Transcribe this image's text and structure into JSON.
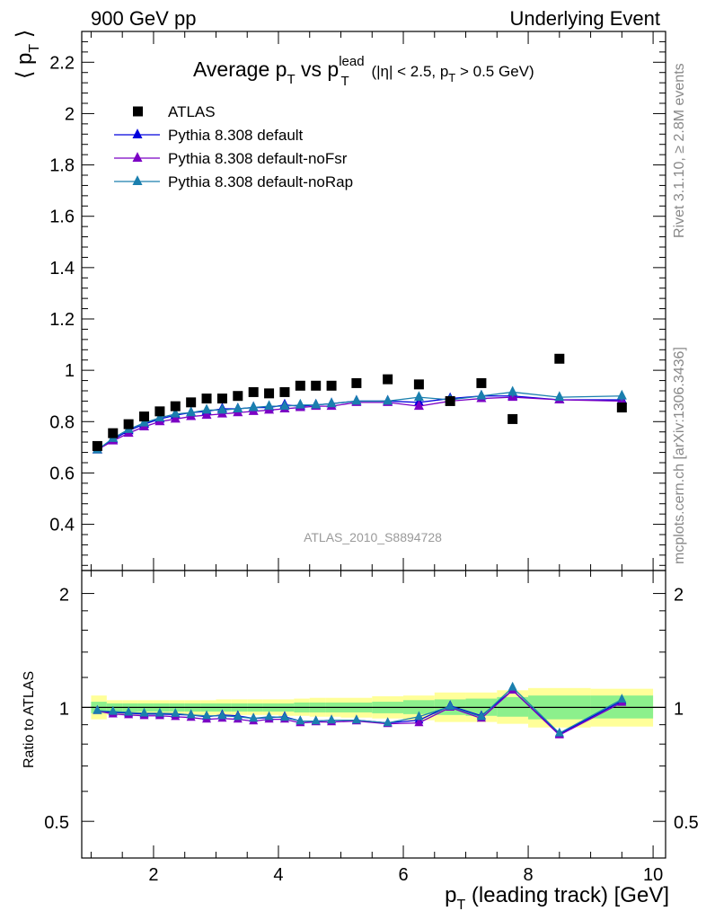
{
  "header": {
    "left": "900 GeV pp",
    "right": "Underlying Event"
  },
  "side": {
    "rivet": "Rivet 3.1.10, ≥ 2.8M events",
    "mcplots": "mcplots.cern.ch [arXiv:1306.3436]"
  },
  "watermark": "ATLAS_2010_S8894728",
  "chart_data": [
    {
      "type": "scatter",
      "panel": "main",
      "title": {
        "text": "Average p",
        "sub1": "T",
        "mid": " vs p",
        "sup2": "lead",
        "sub2": "T",
        "tail": " (|η| < 2.5, p",
        "sub3": "T",
        "end": " > 0.5 GeV)"
      },
      "ylabel": {
        "text": "⟨ p",
        "sub": "T",
        "close": " ⟩"
      },
      "xlim": [
        0.85,
        10.2
      ],
      "ylim": [
        0.22,
        2.32
      ],
      "yticks": [
        0.4,
        0.6,
        0.8,
        1,
        1.2,
        1.4,
        1.6,
        1.8,
        2,
        2.2
      ],
      "ytick_labels": [
        "0.4",
        "0.6",
        "0.8",
        "1",
        "1.2",
        "1.4",
        "1.6",
        "1.8",
        "2",
        "2.2"
      ],
      "legend": {
        "placement": "top-left",
        "entries": [
          {
            "label": "ATLAS",
            "color": "#000000",
            "marker": "square"
          },
          {
            "label": "Pythia 8.308 default",
            "color": "#0000dd",
            "marker": "triangle"
          },
          {
            "label": "Pythia 8.308 default-noFsr",
            "color": "#7b00c4",
            "marker": "triangle"
          },
          {
            "label": "Pythia 8.308 default-noRap",
            "color": "#1a7fae",
            "marker": "triangle"
          }
        ]
      },
      "x": [
        1.1,
        1.35,
        1.6,
        1.85,
        2.1,
        2.35,
        2.6,
        2.85,
        3.1,
        3.35,
        3.6,
        3.85,
        4.1,
        4.35,
        4.6,
        4.85,
        5.25,
        5.75,
        6.25,
        6.75,
        7.25,
        7.75,
        8.5,
        9.5
      ],
      "series": [
        {
          "name": "ATLAS",
          "color": "#000000",
          "marker": "square",
          "values": [
            0.705,
            0.755,
            0.79,
            0.82,
            0.84,
            0.86,
            0.875,
            0.89,
            0.89,
            0.9,
            0.915,
            0.91,
            0.915,
            0.94,
            0.94,
            0.94,
            0.95,
            0.965,
            0.945,
            0.88,
            0.95,
            0.81,
            1.045,
            0.855
          ]
        },
        {
          "name": "Pythia 8.308 default",
          "color": "#0000dd",
          "marker": "triangle",
          "values": [
            0.69,
            0.73,
            0.765,
            0.79,
            0.81,
            0.825,
            0.835,
            0.84,
            0.85,
            0.85,
            0.855,
            0.855,
            0.865,
            0.86,
            0.865,
            0.87,
            0.88,
            0.88,
            0.875,
            0.89,
            0.9,
            0.9,
            0.885,
            0.885
          ]
        },
        {
          "name": "Pythia 8.308 default-noFsr",
          "color": "#7b00c4",
          "marker": "triangle",
          "values": [
            0.69,
            0.725,
            0.755,
            0.78,
            0.8,
            0.81,
            0.82,
            0.825,
            0.83,
            0.835,
            0.84,
            0.845,
            0.85,
            0.855,
            0.86,
            0.86,
            0.875,
            0.875,
            0.86,
            0.88,
            0.89,
            0.895,
            0.885,
            0.88
          ]
        },
        {
          "name": "Pythia 8.308 default-noRap",
          "color": "#1a7fae",
          "marker": "triangle",
          "values": [
            0.69,
            0.735,
            0.77,
            0.795,
            0.815,
            0.83,
            0.835,
            0.845,
            0.845,
            0.85,
            0.855,
            0.86,
            0.86,
            0.865,
            0.865,
            0.87,
            0.88,
            0.88,
            0.895,
            0.885,
            0.9,
            0.915,
            0.895,
            0.9
          ]
        }
      ]
    },
    {
      "type": "line",
      "panel": "ratio",
      "ylabel": "Ratio to ATLAS",
      "xlabel": {
        "text": "p",
        "sub": "T",
        "tail": " (leading track) [GeV]"
      },
      "scale": "log",
      "xlim": [
        0.85,
        10.2
      ],
      "ylim": [
        0.4,
        2.3
      ],
      "yticks": [
        0.5,
        1,
        2
      ],
      "ytick_labels": [
        "0.5",
        "1",
        "2"
      ],
      "xticks": [
        2,
        4,
        6,
        8,
        10
      ],
      "xtick_labels": [
        "2",
        "4",
        "6",
        "8",
        "10"
      ],
      "bin_edges": [
        1.0,
        1.25,
        1.5,
        1.75,
        2.0,
        2.25,
        2.5,
        2.75,
        3.0,
        3.25,
        3.5,
        3.75,
        4.0,
        4.25,
        4.5,
        4.75,
        5.0,
        5.5,
        6.0,
        6.5,
        7.0,
        7.5,
        8.0,
        9.0,
        10.0
      ],
      "band_inner": [
        [
          0.965,
          1.035
        ],
        [
          0.975,
          1.025
        ],
        [
          0.975,
          1.025
        ],
        [
          0.975,
          1.025
        ],
        [
          0.975,
          1.025
        ],
        [
          0.975,
          1.025
        ],
        [
          0.975,
          1.025
        ],
        [
          0.975,
          1.025
        ],
        [
          0.975,
          1.025
        ],
        [
          0.975,
          1.025
        ],
        [
          0.975,
          1.025
        ],
        [
          0.975,
          1.025
        ],
        [
          0.975,
          1.025
        ],
        [
          0.97,
          1.03
        ],
        [
          0.97,
          1.03
        ],
        [
          0.97,
          1.03
        ],
        [
          0.97,
          1.03
        ],
        [
          0.965,
          1.035
        ],
        [
          0.96,
          1.045
        ],
        [
          0.955,
          1.05
        ],
        [
          0.95,
          1.055
        ],
        [
          0.945,
          1.065
        ],
        [
          0.93,
          1.075
        ],
        [
          0.935,
          1.075
        ]
      ],
      "band_outer": [
        [
          0.93,
          1.075
        ],
        [
          0.955,
          1.045
        ],
        [
          0.955,
          1.045
        ],
        [
          0.955,
          1.045
        ],
        [
          0.955,
          1.045
        ],
        [
          0.955,
          1.045
        ],
        [
          0.955,
          1.045
        ],
        [
          0.955,
          1.045
        ],
        [
          0.955,
          1.05
        ],
        [
          0.955,
          1.05
        ],
        [
          0.955,
          1.05
        ],
        [
          0.955,
          1.05
        ],
        [
          0.95,
          1.05
        ],
        [
          0.95,
          1.055
        ],
        [
          0.945,
          1.06
        ],
        [
          0.945,
          1.06
        ],
        [
          0.94,
          1.06
        ],
        [
          0.935,
          1.07
        ],
        [
          0.925,
          1.075
        ],
        [
          0.915,
          1.095
        ],
        [
          0.915,
          1.095
        ],
        [
          0.905,
          1.11
        ],
        [
          0.885,
          1.125
        ],
        [
          0.89,
          1.12
        ]
      ],
      "band_inner_color": "#8cf08c",
      "band_outer_color": "#ffff99",
      "x": [
        1.1,
        1.35,
        1.6,
        1.85,
        2.1,
        2.35,
        2.6,
        2.85,
        3.1,
        3.35,
        3.6,
        3.85,
        4.1,
        4.35,
        4.6,
        4.85,
        5.25,
        5.75,
        6.25,
        6.75,
        7.25,
        7.75,
        8.5,
        9.5
      ],
      "series": [
        {
          "name": "Pythia 8.308 default",
          "color": "#0000dd",
          "values": [
            0.98,
            0.97,
            0.965,
            0.96,
            0.96,
            0.958,
            0.955,
            0.945,
            0.955,
            0.95,
            0.935,
            0.94,
            0.945,
            0.92,
            0.92,
            0.925,
            0.925,
            0.91,
            0.925,
            1.01,
            0.95,
            1.11,
            0.85,
            1.04
          ]
        },
        {
          "name": "Pythia 8.308 default-noFsr",
          "color": "#7b00c4",
          "values": [
            0.98,
            0.96,
            0.955,
            0.95,
            0.95,
            0.945,
            0.94,
            0.93,
            0.935,
            0.93,
            0.92,
            0.93,
            0.93,
            0.91,
            0.915,
            0.915,
            0.92,
            0.905,
            0.91,
            1.0,
            0.935,
            1.11,
            0.845,
            1.03
          ]
        },
        {
          "name": "Pythia 8.308 default-noRap",
          "color": "#1a7fae",
          "values": [
            0.98,
            0.975,
            0.97,
            0.965,
            0.965,
            0.963,
            0.955,
            0.95,
            0.95,
            0.945,
            0.935,
            0.945,
            0.94,
            0.92,
            0.92,
            0.925,
            0.925,
            0.91,
            0.945,
            1.005,
            0.945,
            1.13,
            0.855,
            1.05
          ]
        }
      ]
    }
  ]
}
